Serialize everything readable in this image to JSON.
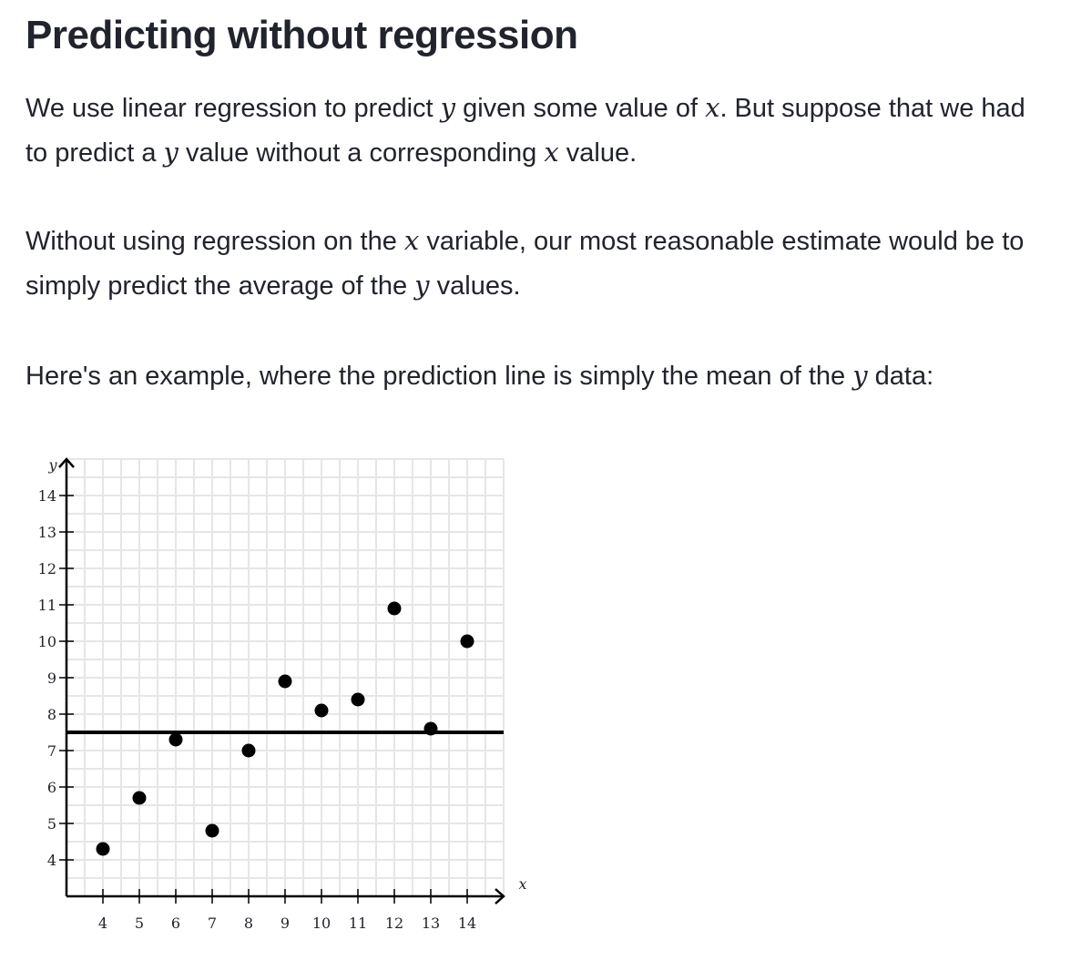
{
  "page": {
    "title": "Predicting without regression",
    "paragraphs": [
      {
        "segments": [
          {
            "t": "We use linear regression to predict "
          },
          {
            "t": "y",
            "m": true
          },
          {
            "t": " given some value of "
          },
          {
            "t": "x",
            "m": true
          },
          {
            "t": ". But suppose that we had to predict a "
          },
          {
            "t": "y",
            "m": true
          },
          {
            "t": " value without a corresponding "
          },
          {
            "t": "x",
            "m": true
          },
          {
            "t": " value."
          }
        ]
      },
      {
        "segments": [
          {
            "t": "Without using regression on the "
          },
          {
            "t": "x",
            "m": true
          },
          {
            "t": " variable, our most reasonable estimate would be to simply predict the average of the "
          },
          {
            "t": "y",
            "m": true
          },
          {
            "t": " values."
          }
        ]
      },
      {
        "segments": [
          {
            "t": "Here's an example, where the prediction line is simply the mean of the "
          },
          {
            "t": "y",
            "m": true
          },
          {
            "t": " data:"
          }
        ]
      }
    ]
  },
  "chart_data": {
    "type": "scatter",
    "title": "",
    "xlabel": "x",
    "ylabel": "y",
    "xlim": [
      3,
      15
    ],
    "ylim": [
      3,
      15
    ],
    "x_ticks": [
      4,
      5,
      6,
      7,
      8,
      9,
      10,
      11,
      12,
      13,
      14
    ],
    "y_ticks": [
      4,
      5,
      6,
      7,
      8,
      9,
      10,
      11,
      12,
      13,
      14
    ],
    "grid": true,
    "points": [
      {
        "x": 4,
        "y": 4.3
      },
      {
        "x": 5,
        "y": 5.7
      },
      {
        "x": 6,
        "y": 7.3
      },
      {
        "x": 7,
        "y": 4.8
      },
      {
        "x": 8,
        "y": 7.0
      },
      {
        "x": 9,
        "y": 8.9
      },
      {
        "x": 10,
        "y": 8.1
      },
      {
        "x": 11,
        "y": 8.4
      },
      {
        "x": 12,
        "y": 10.9
      },
      {
        "x": 13,
        "y": 7.6
      },
      {
        "x": 14,
        "y": 10.0
      }
    ],
    "mean_line": {
      "y": 7.5
    }
  }
}
